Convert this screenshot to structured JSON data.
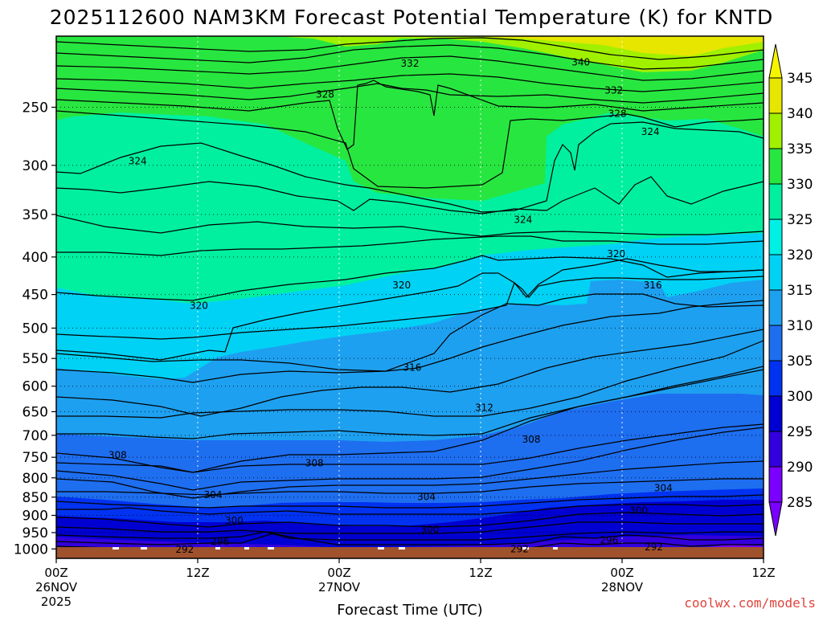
{
  "chart_data": {
    "type": "heatmap",
    "title": "2025112600 NAM3KM Forecast Potential Temperature (K) for KNTD",
    "xlabel": "Forecast Time (UTC)",
    "ylabel": "",
    "credit": "coolwx.com/models",
    "x_ticks": [
      {
        "hours": 0,
        "line1": "00Z",
        "line2": "26NOV",
        "line3": "2025"
      },
      {
        "hours": 12,
        "line1": "12Z",
        "line2": "",
        "line3": ""
      },
      {
        "hours": 24,
        "line1": "00Z",
        "line2": "27NOV",
        "line3": ""
      },
      {
        "hours": 36,
        "line1": "12Z",
        "line2": "",
        "line3": ""
      },
      {
        "hours": 48,
        "line1": "00Z",
        "line2": "28NOV",
        "line3": ""
      },
      {
        "hours": 60,
        "line1": "12Z",
        "line2": "",
        "line3": ""
      }
    ],
    "xlim": [
      0,
      60
    ],
    "y_ticks": [
      250,
      300,
      350,
      400,
      450,
      500,
      550,
      600,
      650,
      700,
      750,
      800,
      850,
      900,
      950,
      1000
    ],
    "ylim": [
      1030,
      200
    ],
    "y_scale": "log",
    "grid": true,
    "colorbar": {
      "levels": [
        285,
        290,
        295,
        300,
        305,
        310,
        315,
        320,
        325,
        330,
        335,
        340,
        345
      ],
      "colors": [
        "#7a00ff",
        "#3200dc",
        "#0000d2",
        "#0032f0",
        "#1e6ef0",
        "#1ea0f0",
        "#00d2f5",
        "#00f0e6",
        "#00f0a0",
        "#28e640",
        "#a0f000",
        "#e6e600"
      ]
    },
    "contour_labels": [
      {
        "value": 332,
        "time": 30.0,
        "pressure": 218
      },
      {
        "value": 340,
        "time": 44.5,
        "pressure": 217
      },
      {
        "value": 328,
        "time": 22.8,
        "pressure": 240
      },
      {
        "value": 332,
        "time": 47.3,
        "pressure": 237
      },
      {
        "value": 328,
        "time": 47.6,
        "pressure": 255
      },
      {
        "value": 324,
        "time": 50.4,
        "pressure": 270
      },
      {
        "value": 324,
        "time": 6.9,
        "pressure": 296
      },
      {
        "value": 324,
        "time": 39.6,
        "pressure": 356
      },
      {
        "value": 320,
        "time": 47.5,
        "pressure": 396
      },
      {
        "value": 320,
        "time": 29.3,
        "pressure": 437
      },
      {
        "value": 316,
        "time": 50.6,
        "pressure": 437
      },
      {
        "value": 320,
        "time": 12.1,
        "pressure": 466
      },
      {
        "value": 316,
        "time": 30.2,
        "pressure": 566
      },
      {
        "value": 312,
        "time": 36.3,
        "pressure": 642
      },
      {
        "value": 308,
        "time": 40.3,
        "pressure": 709
      },
      {
        "value": 308,
        "time": 5.2,
        "pressure": 745
      },
      {
        "value": 308,
        "time": 21.9,
        "pressure": 764
      },
      {
        "value": 304,
        "time": 13.3,
        "pressure": 844
      },
      {
        "value": 304,
        "time": 31.4,
        "pressure": 849
      },
      {
        "value": 304,
        "time": 51.5,
        "pressure": 826
      },
      {
        "value": 300,
        "time": 49.4,
        "pressure": 886
      },
      {
        "value": 300,
        "time": 15.1,
        "pressure": 915
      },
      {
        "value": 300,
        "time": 31.7,
        "pressure": 941
      },
      {
        "value": 296,
        "time": 13.9,
        "pressure": 977
      },
      {
        "value": 296,
        "time": 46.9,
        "pressure": 973
      },
      {
        "value": 292,
        "time": 10.9,
        "pressure": 1002
      },
      {
        "value": 292,
        "time": 39.3,
        "pressure": 1000
      },
      {
        "value": 292,
        "time": 50.7,
        "pressure": 994
      }
    ]
  }
}
